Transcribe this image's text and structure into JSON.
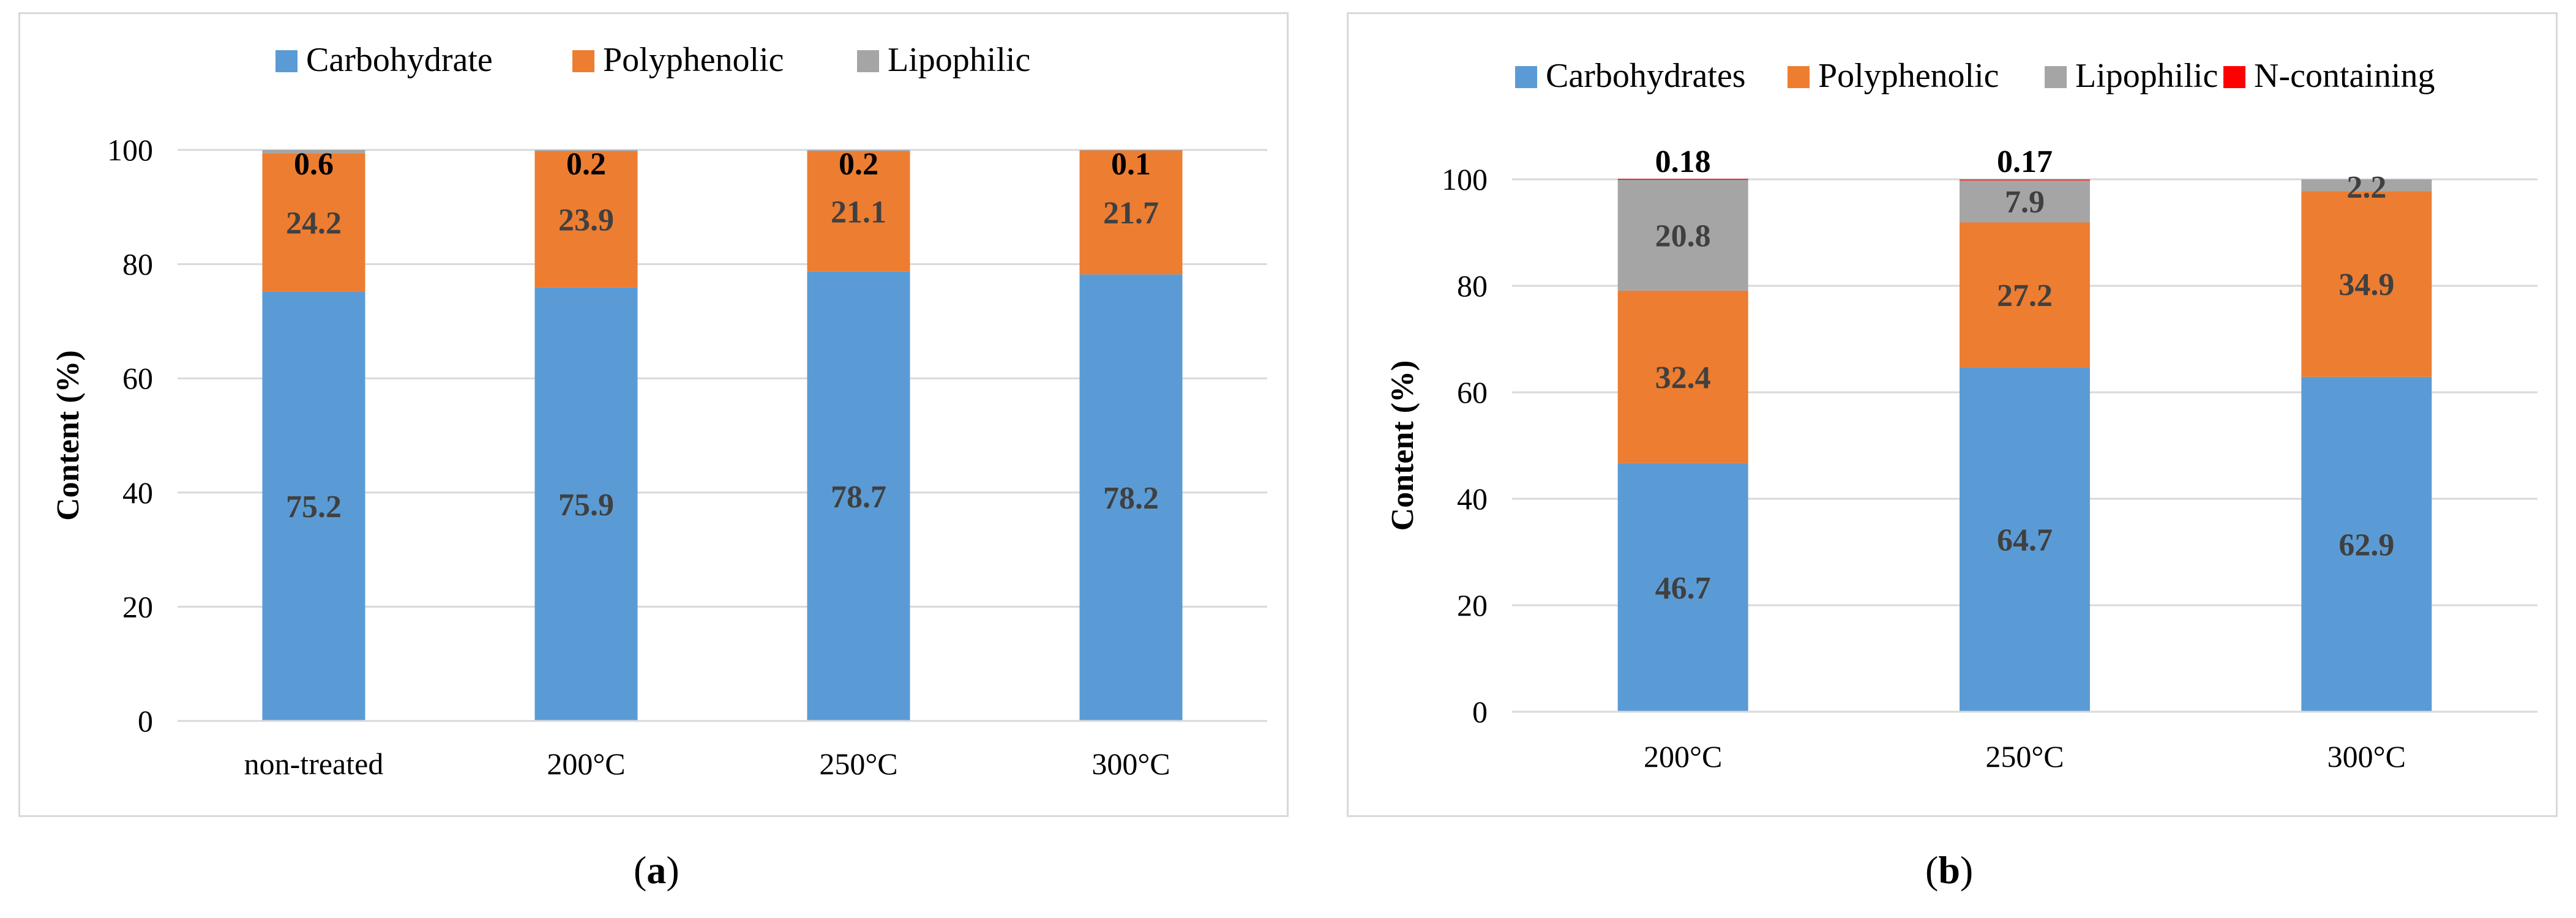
{
  "colors": {
    "carbohydrate": "#5b9bd5",
    "polyphenolic": "#ed7d31",
    "lipophilic": "#a5a5a5",
    "n_containing": "#ff0000",
    "grid": "#d9d9d9"
  },
  "captions": {
    "a_open": "(",
    "a_letter": "a",
    "a_close": ")",
    "b_open": "(",
    "b_letter": "b",
    "b_close": ")"
  },
  "chart_data": [
    {
      "type": "bar",
      "stacked": true,
      "ylabel": "Content (%)",
      "ylim": [
        0,
        100
      ],
      "yticks": [
        0,
        20,
        40,
        60,
        80,
        100
      ],
      "categories": [
        "non-treated",
        "200°C",
        "250°C",
        "300°C"
      ],
      "legend_position": "top",
      "series": [
        {
          "name": "Carbohydrate",
          "color": "#5b9bd5",
          "values": [
            75.2,
            75.9,
            78.7,
            78.2
          ],
          "labels": [
            "75.2",
            "75.9",
            "78.7",
            "78.2"
          ]
        },
        {
          "name": "Polyphenolic",
          "color": "#ed7d31",
          "values": [
            24.2,
            23.9,
            21.1,
            21.7
          ],
          "labels": [
            "24.2",
            "23.9",
            "21.1",
            "21.7"
          ]
        },
        {
          "name": "Lipophilic",
          "color": "#a5a5a5",
          "values": [
            0.6,
            0.2,
            0.2,
            0.1
          ],
          "labels": [
            "0.6",
            "0.2",
            "0.2",
            "0.1"
          ]
        }
      ]
    },
    {
      "type": "bar",
      "stacked": true,
      "ylabel": "Content (%)",
      "ylim": [
        0,
        100
      ],
      "yticks": [
        0,
        20,
        40,
        60,
        80,
        100
      ],
      "categories": [
        "200°C",
        "250°C",
        "300°C"
      ],
      "legend_position": "top",
      "series": [
        {
          "name": "Carbohydrates",
          "color": "#5b9bd5",
          "values": [
            46.7,
            64.7,
            62.9
          ],
          "labels": [
            "46.7",
            "64.7",
            "62.9"
          ]
        },
        {
          "name": "Polyphenolic",
          "color": "#ed7d31",
          "values": [
            32.4,
            27.2,
            34.9
          ],
          "labels": [
            "32.4",
            "27.2",
            "34.9"
          ]
        },
        {
          "name": "Lipophilic",
          "color": "#a5a5a5",
          "values": [
            20.8,
            7.9,
            2.2
          ],
          "labels": [
            "20.8",
            "7.9",
            "2.2"
          ]
        },
        {
          "name": "N-containing",
          "color": "#ff0000",
          "values": [
            0.18,
            0.17,
            0
          ],
          "labels": [
            "0.18",
            "0.17",
            ""
          ]
        }
      ]
    }
  ]
}
